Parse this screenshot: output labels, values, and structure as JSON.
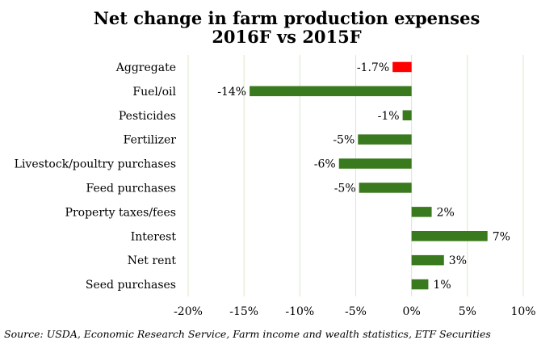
{
  "chart_data": {
    "type": "bar",
    "orientation": "horizontal",
    "title": "Net change in farm production expenses",
    "subtitle": "2016F vs 2015F",
    "categories": [
      "Aggregate",
      "Fuel/oil",
      "Pesticides",
      "Fertilizer",
      "Livestock/poultry purchases",
      "Feed purchases",
      "Property taxes/fees",
      "Interest",
      "Net rent",
      "Seed purchases"
    ],
    "values": [
      -1.7,
      -14.5,
      -0.8,
      -4.8,
      -6.5,
      -4.7,
      1.8,
      6.8,
      2.9,
      1.5
    ],
    "data_labels": [
      "-1.7%",
      "-14%",
      "-1%",
      "-5%",
      "-6%",
      "-5%",
      "2%",
      "7%",
      "3%",
      "1%"
    ],
    "colors": [
      "#ff0000",
      "#3a7a1e",
      "#3a7a1e",
      "#3a7a1e",
      "#3a7a1e",
      "#3a7a1e",
      "#3a7a1e",
      "#3a7a1e",
      "#3a7a1e",
      "#3a7a1e"
    ],
    "xlim": [
      -20,
      10
    ],
    "xticks": [
      -20,
      -15,
      -10,
      -5,
      0,
      5,
      10
    ],
    "xtick_labels": [
      "-20%",
      "-15%",
      "-10%",
      "-5%",
      "0%",
      "5%",
      "10%"
    ],
    "grid": true,
    "source": "Source: USDA, Economic Research Service, Farm income and wealth statistics, ETF Securities"
  }
}
